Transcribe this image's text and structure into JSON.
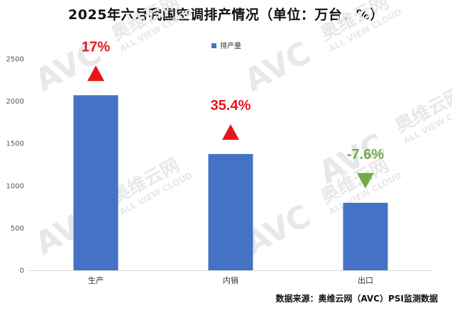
{
  "chart_data": {
    "type": "bar",
    "title": "2025年六月我国空调排产情况（单位：万台、%）",
    "categories": [
      "生产",
      "内销",
      "出口"
    ],
    "series": [
      {
        "name": "排产量",
        "values": [
          2070,
          1375,
          798
        ]
      }
    ],
    "changes": [
      "17%",
      "35.4%",
      "-7.6%"
    ],
    "change_directions": [
      "up",
      "up",
      "down"
    ],
    "ylim": [
      0,
      2500
    ],
    "yticks": [
      0,
      500,
      1000,
      1500,
      2000,
      2500
    ],
    "grid": false,
    "legend_position": "top-center",
    "colors": {
      "bar": "#4472C4",
      "up": "#E8141A",
      "down": "#70AD47"
    }
  },
  "source": "数据来源：奥维云网（AVC）PSI监测数据",
  "watermark": {
    "logo": "AVC",
    "brand": "奥维云网",
    "tagline": "ALL VIEW CLOUD"
  }
}
